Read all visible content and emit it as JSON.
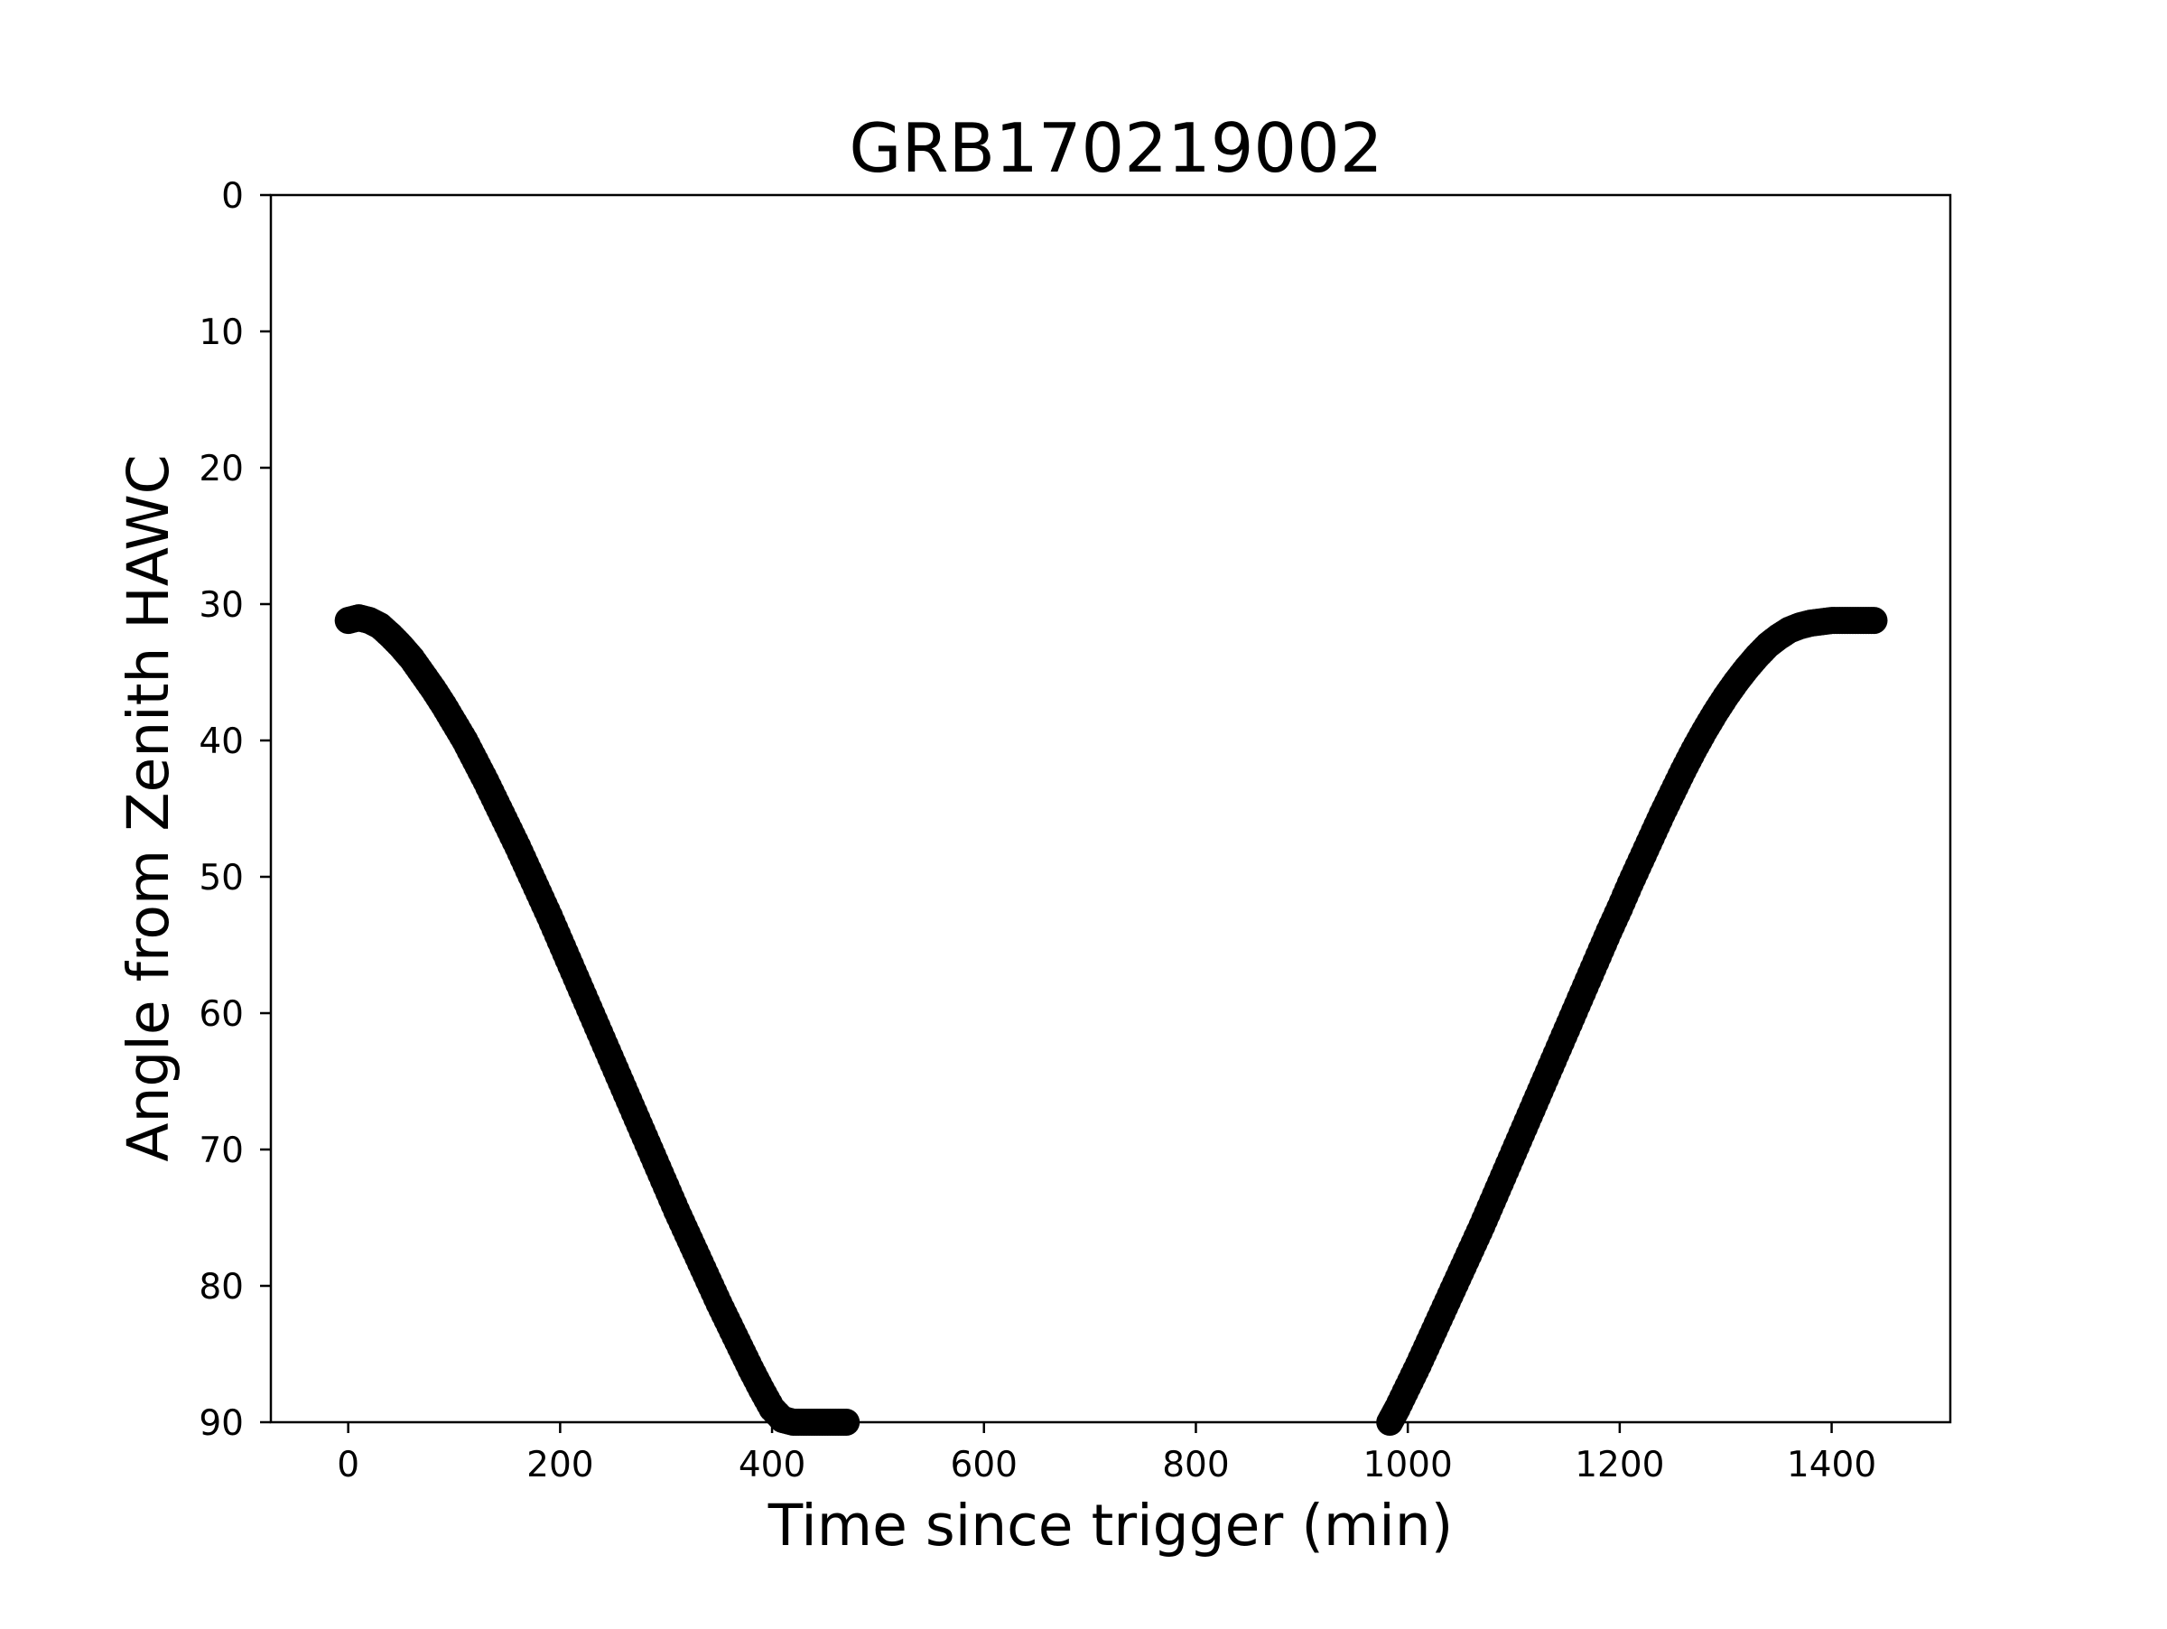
{
  "chart_data": {
    "type": "scatter",
    "title": "GRB170219002",
    "xlabel": "Time since trigger (min)",
    "ylabel": "Angle from Zenith HAWC",
    "xlim": [
      -73,
      1512
    ],
    "ylim": [
      0,
      90
    ],
    "y_inverted": true,
    "grid": false,
    "legend": "none",
    "marker_color": "#000000",
    "xticks": [
      0,
      200,
      400,
      600,
      800,
      1000,
      1200,
      1400
    ],
    "yticks": [
      0,
      10,
      20,
      30,
      40,
      50,
      60,
      70,
      80,
      90
    ],
    "series": [
      {
        "x": [
          0,
          10,
          20,
          30,
          40,
          50,
          60,
          70,
          80,
          90,
          100,
          110,
          120,
          130,
          140,
          150,
          160,
          170,
          180,
          190,
          200,
          210,
          220,
          230,
          240,
          250,
          260,
          270,
          280,
          290,
          300,
          310,
          320,
          330,
          340,
          350,
          360,
          370,
          380,
          390,
          400,
          410,
          420,
          430,
          440,
          450,
          460,
          470
        ],
        "y": [
          31.2,
          31.0,
          31.2,
          31.6,
          32.3,
          33.1,
          34.0,
          35.1,
          36.2,
          37.4,
          38.7,
          40.0,
          41.5,
          43.0,
          44.6,
          46.2,
          47.8,
          49.5,
          51.2,
          52.9,
          54.7,
          56.5,
          58.3,
          60.1,
          61.9,
          63.7,
          65.5,
          67.3,
          69.1,
          70.9,
          72.7,
          74.5,
          76.2,
          77.9,
          79.6,
          81.3,
          82.9,
          84.5,
          86.1,
          87.6,
          89.0,
          89.8,
          90.0,
          90.0,
          90.0,
          90.0,
          90.0,
          90.0
        ]
      },
      {
        "x": [
          983,
          990,
          1000,
          1010,
          1020,
          1030,
          1040,
          1050,
          1060,
          1070,
          1080,
          1090,
          1100,
          1110,
          1120,
          1130,
          1140,
          1150,
          1160,
          1170,
          1180,
          1190,
          1200,
          1210,
          1220,
          1230,
          1240,
          1250,
          1260,
          1270,
          1280,
          1290,
          1300,
          1310,
          1320,
          1330,
          1340,
          1350,
          1360,
          1370,
          1380,
          1390,
          1400,
          1410,
          1420,
          1430,
          1440
        ],
        "y": [
          90.0,
          89.0,
          87.4,
          85.8,
          84.1,
          82.4,
          80.7,
          79.0,
          77.3,
          75.6,
          73.8,
          72.0,
          70.2,
          68.4,
          66.6,
          64.8,
          63.0,
          61.2,
          59.4,
          57.6,
          55.8,
          54.0,
          52.3,
          50.5,
          48.8,
          47.1,
          45.4,
          43.8,
          42.2,
          40.7,
          39.3,
          38.0,
          36.8,
          35.7,
          34.7,
          33.8,
          33.0,
          32.4,
          31.9,
          31.6,
          31.4,
          31.3,
          31.2,
          31.2,
          31.2,
          31.2,
          31.2
        ]
      }
    ]
  }
}
